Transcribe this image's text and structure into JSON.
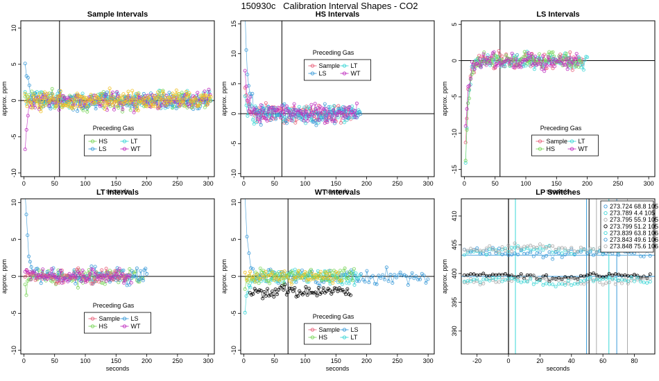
{
  "page": {
    "title": "150930c   Calibration Interval Shapes - CO2"
  },
  "colors": {
    "Sample": "#e8607a",
    "HS": "#7ad65a",
    "LS": "#3a9ad8",
    "LT": "#3ad6d6",
    "WT": "#c030c0",
    "SampleMix": "#f0c020"
  },
  "chart_data": [
    {
      "type": "scatter",
      "title": "Sample Intervals",
      "xlabel": "seconds",
      "ylabel": "approx. ppm",
      "xlim": [
        -5,
        310
      ],
      "ylim": [
        -10.5,
        11
      ],
      "xticks": [
        0,
        50,
        100,
        150,
        200,
        250,
        300
      ],
      "yticks": [
        -10,
        -5,
        0,
        5,
        10
      ],
      "vline": 58,
      "hline": 0,
      "legend": {
        "title": "Preceding Gas",
        "position": "bottom-center",
        "entries": [
          "HS",
          "LT",
          "LS",
          "WT"
        ],
        "cols": 2
      },
      "series": [
        {
          "name": "HS",
          "color": "#7ad65a",
          "start_y": 0.5,
          "decay": 5,
          "noise": 1.2,
          "x_end": 305,
          "step": 2.2,
          "seed": 3
        },
        {
          "name": "LT",
          "color": "#3ad6d6",
          "start_y": 0.3,
          "decay": 5,
          "noise": 1.2,
          "x_end": 305,
          "step": 2.4,
          "seed": 5
        },
        {
          "name": "LS",
          "color": "#3a9ad8",
          "start_y": 5.8,
          "decay": 6,
          "noise": 1.2,
          "x_end": 305,
          "step": 2.3,
          "seed": 7
        },
        {
          "name": "WT",
          "color": "#c030c0",
          "start_y": -6.5,
          "decay": 4,
          "noise": 1.2,
          "x_end": 305,
          "step": 2.3,
          "seed": 11
        },
        {
          "name": "Sample",
          "color": "#f0c020",
          "start_y": 0.3,
          "decay": 5,
          "noise": 1.3,
          "x_end": 305,
          "step": 1.6,
          "seed": 13
        }
      ]
    },
    {
      "type": "scatter",
      "title": "HS Intervals",
      "xlabel": "seconds",
      "ylabel": "approx. ppm",
      "xlim": [
        -5,
        310
      ],
      "ylim": [
        -10.5,
        15.5
      ],
      "xticks": [
        0,
        50,
        100,
        150,
        200,
        250,
        300
      ],
      "yticks": [
        -10,
        -5,
        0,
        5,
        10,
        15
      ],
      "vline": 62,
      "hline": 0,
      "legend": {
        "title": "Preceding Gas",
        "position": "top-center",
        "entries": [
          "Sample",
          "LT",
          "LS",
          "WT"
        ],
        "cols": 2
      },
      "series": [
        {
          "name": "Sample",
          "color": "#e8607a",
          "start_y": 4.5,
          "decay": 6,
          "noise": 1.6,
          "x_end": 175,
          "step": 2.0,
          "seed": 17
        },
        {
          "name": "LT",
          "color": "#3ad6d6",
          "start_y": 2.0,
          "decay": 6,
          "noise": 1.6,
          "x_end": 190,
          "step": 2.1,
          "seed": 19
        },
        {
          "name": "LS",
          "color": "#3a9ad8",
          "start_y": 15.5,
          "decay": 5,
          "noise": 1.6,
          "x_end": 190,
          "step": 2.0,
          "seed": 23
        },
        {
          "name": "WT",
          "color": "#c030c0",
          "start_y": 5.5,
          "decay": 6,
          "noise": 1.6,
          "x_end": 185,
          "step": 2.0,
          "seed": 29
        }
      ]
    },
    {
      "type": "scatter",
      "title": "LS Intervals",
      "xlabel": "seconds",
      "ylabel": "approx. ppm",
      "xlim": [
        -5,
        310
      ],
      "ylim": [
        -16,
        5.5
      ],
      "xticks": [
        0,
        50,
        100,
        150,
        200,
        250,
        300
      ],
      "yticks": [
        -15,
        -10,
        -5,
        0,
        5
      ],
      "vline": 58,
      "hline": 0,
      "legend": {
        "title": "Preceding Gas",
        "position": "bottom-center",
        "entries": [
          "Sample",
          "LT",
          "HS",
          "WT"
        ],
        "cols": 2
      },
      "series": [
        {
          "name": "Sample",
          "color": "#e8607a",
          "start_y": -11,
          "decay": 5,
          "noise": 1.1,
          "x_end": 195,
          "step": 2.0,
          "seed": 31
        },
        {
          "name": "LT",
          "color": "#3ad6d6",
          "start_y": -15,
          "decay": 5,
          "noise": 1.1,
          "x_end": 200,
          "step": 2.0,
          "seed": 37
        },
        {
          "name": "HS",
          "color": "#7ad65a",
          "start_y": -14,
          "decay": 5,
          "noise": 1.1,
          "x_end": 190,
          "step": 2.0,
          "seed": 41
        },
        {
          "name": "WT",
          "color": "#c030c0",
          "start_y": -10,
          "decay": 5,
          "noise": 1.1,
          "x_end": 185,
          "step": 2.1,
          "seed": 43
        }
      ]
    },
    {
      "type": "scatter",
      "title": "LT Intervals",
      "xlabel": "seconds",
      "ylabel": "approx. ppm",
      "xlim": [
        -5,
        310
      ],
      "ylim": [
        -10.5,
        10.5
      ],
      "xticks": [
        0,
        50,
        100,
        150,
        200,
        250,
        300
      ],
      "yticks": [
        -10,
        -5,
        0,
        5,
        10
      ],
      "vline": null,
      "hline": 0,
      "legend": {
        "title": "Preceding Gas",
        "position": "bottom-center",
        "entries": [
          "Sample",
          "LS",
          "HS",
          "WT"
        ],
        "cols": 2
      },
      "series": [
        {
          "name": "HS",
          "color": "#7ad65a",
          "start_y": -2.5,
          "decay": 4,
          "noise": 1.1,
          "x_end": 195,
          "step": 2.0,
          "seed": 47
        },
        {
          "name": "LS",
          "color": "#3a9ad8",
          "start_y": 12,
          "decay": 5,
          "noise": 1.1,
          "x_end": 200,
          "step": 2.0,
          "seed": 53
        },
        {
          "name": "Sample",
          "color": "#e8607a",
          "start_y": 0.5,
          "decay": 4,
          "noise": 1.0,
          "x_end": 170,
          "step": 2.4,
          "seed": 59
        },
        {
          "name": "WT",
          "color": "#c030c0",
          "start_y": 0.5,
          "decay": 4,
          "noise": 1.0,
          "x_end": 175,
          "step": 2.4,
          "seed": 61
        }
      ]
    },
    {
      "type": "scatter",
      "title": "WT Intervals",
      "xlabel": "seconds",
      "ylabel": "approx. ppm",
      "xlim": [
        -5,
        310
      ],
      "ylim": [
        -10.5,
        10.5
      ],
      "xticks": [
        0,
        50,
        100,
        150,
        200,
        250,
        300
      ],
      "yticks": [
        -10,
        -5,
        0,
        5,
        10
      ],
      "vline": 72,
      "hline": 0,
      "legend": {
        "title": "Preceding Gas",
        "position": "bottom-center",
        "entries": [
          "Sample",
          "LS",
          "HS",
          "LT"
        ],
        "cols": 2
      },
      "series": [
        {
          "name": "LS",
          "color": "#3a9ad8",
          "start_y": 10.5,
          "decay": 5,
          "noise": 1.0,
          "x_end": 300,
          "step": 3.2,
          "seed": 67
        },
        {
          "name": "LT",
          "color": "#3ad6d6",
          "start_y": -3.5,
          "decay": 8,
          "noise": 1.0,
          "x_end": 190,
          "step": 2.2,
          "seed": 71
        },
        {
          "name": "HS",
          "color": "#7ad65a",
          "start_y": -2.0,
          "decay": 6,
          "noise": 1.0,
          "x_end": 180,
          "step": 2.5,
          "seed": 73
        },
        {
          "name": "Sample",
          "color": "#f0c020",
          "start_y": 0.2,
          "decay": 5,
          "noise": 0.9,
          "x_end": 160,
          "step": 2.8,
          "seed": 79
        },
        {
          "name": "Baseline",
          "color": "#000000",
          "start_y": -2.0,
          "decay": 0.1,
          "noise": 0.9,
          "offset": -2.0,
          "x_start": 10,
          "x_end": 175,
          "step": 2.6,
          "seed": 83
        }
      ]
    },
    {
      "type": "scatter",
      "title": "LP Switches",
      "xlabel": "seconds",
      "ylabel": "approx. ppm",
      "xlim": [
        -30,
        93
      ],
      "ylim": [
        386,
        413
      ],
      "xticks": [
        -20,
        0,
        20,
        40,
        60,
        80
      ],
      "yticks": [
        390,
        395,
        400,
        405,
        410
      ],
      "vline": 0,
      "legend_entries": [
        {
          "text": "273.724 68.8 105",
          "color": "#3a9ad8"
        },
        {
          "text": "273.789 4.4 105",
          "color": "#3ad6d6"
        },
        {
          "text": "273.795 55.9 105",
          "color": "#aaaaaa"
        },
        {
          "text": "273.799 51.2 105",
          "color": "#000000"
        },
        {
          "text": "273.839 63.8 106",
          "color": "#3ad6d6"
        },
        {
          "text": "273.843 49.6 106",
          "color": "#3a9ad8"
        },
        {
          "text": "273.848 75.6 106",
          "color": "#aaaaaa"
        }
      ],
      "switch_lines": [
        {
          "x": 4.4,
          "color": "#3ad6d6"
        },
        {
          "x": 49.6,
          "color": "#3a9ad8"
        },
        {
          "x": 51.2,
          "color": "#000000"
        },
        {
          "x": 55.9,
          "color": "#aaaaaa"
        },
        {
          "x": 63.8,
          "color": "#3ad6d6"
        },
        {
          "x": 68.8,
          "color": "#3a9ad8"
        },
        {
          "x": 75.6,
          "color": "#aaaaaa"
        }
      ],
      "level_lines": [
        403.2,
        399.5
      ],
      "series": [
        {
          "name": "upper-cyan",
          "color": "#3ad6d6",
          "base": 404.0,
          "noise": 0.9,
          "seed": 89
        },
        {
          "name": "upper-blue",
          "color": "#3a9ad8",
          "base": 403.6,
          "noise": 0.9,
          "seed": 97
        },
        {
          "name": "upper-gray",
          "color": "#aaaaaa",
          "base": 404.4,
          "noise": 0.9,
          "seed": 101
        },
        {
          "name": "lower-black",
          "color": "#000000",
          "base": 399.5,
          "noise": 0.6,
          "seed": 103
        },
        {
          "name": "lower-gray",
          "color": "#aaaaaa",
          "base": 398.8,
          "noise": 0.7,
          "seed": 107
        },
        {
          "name": "lower-cyan",
          "color": "#3ad6d6",
          "base": 398.6,
          "noise": 0.7,
          "seed": 109
        }
      ]
    }
  ]
}
